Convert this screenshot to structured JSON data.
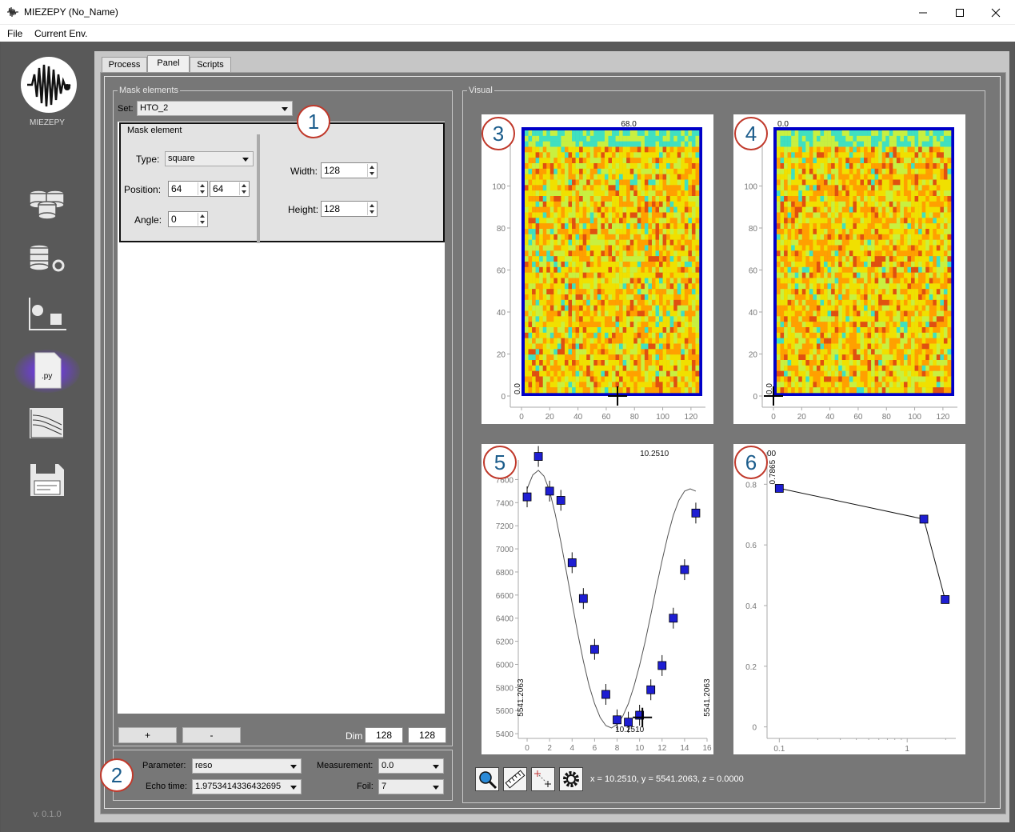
{
  "window": {
    "title": "MIEZEPY (No_Name)"
  },
  "menu": [
    "File",
    "Current Env."
  ],
  "sidebar": {
    "logo_label": "MIEZEPY",
    "version": "v. 0.1.0"
  },
  "tabs": [
    "Process",
    "Panel",
    "Scripts"
  ],
  "mask": {
    "group_title": "Mask elements",
    "set_label": "Set:",
    "set_value": "HTO_2",
    "element_title": "Mask element",
    "type_label": "Type:",
    "type_value": "square",
    "position_label": "Position:",
    "pos_x": "64",
    "pos_y": "64",
    "angle_label": "Angle:",
    "angle_value": "0",
    "width_label": "Width:",
    "width_value": "128",
    "height_label": "Height:",
    "height_value": "128",
    "add_label": "+",
    "remove_label": "-",
    "dim_label": "Dim",
    "dim_x": "128",
    "dim_y": "128"
  },
  "params": {
    "parameter_label": "Parameter:",
    "parameter_value": "reso",
    "echo_label": "Echo time:",
    "echo_value": "1.9753414336432695",
    "measurement_label": "Measurement:",
    "measurement_value": "0.0",
    "foil_label": "Foil:",
    "foil_value": "7"
  },
  "visual": {
    "group_title": "Visual"
  },
  "badges": [
    "1",
    "2",
    "3",
    "4",
    "5",
    "6"
  ],
  "status": {
    "coords": "x = 10.2510, y = 5541.2063, z = 0.0000"
  },
  "tools": [
    "zoom-icon",
    "ruler-icon",
    "crosshair-icon",
    "settings-icon"
  ],
  "chart_data": [
    {
      "type": "heatmap",
      "title": "68.0",
      "cursor_label": "0.0",
      "x_ticks": [
        "0",
        "20",
        "40",
        "60",
        "80",
        "100",
        "120"
      ],
      "y_ticks": [
        "0",
        "20",
        "40",
        "60",
        "80",
        "100"
      ],
      "xlim": [
        0,
        128
      ],
      "ylim": [
        0,
        128
      ],
      "cursor": [
        68,
        0
      ],
      "colormap": [
        "#0000c8",
        "#00a0ff",
        "#40e0c0",
        "#c8f040",
        "#f0e000",
        "#ffa000",
        "#e05010"
      ]
    },
    {
      "type": "heatmap",
      "title": "0.0",
      "cursor_label": "0.0",
      "x_ticks": [
        "0",
        "20",
        "40",
        "60",
        "80",
        "100",
        "120"
      ],
      "y_ticks": [
        "0",
        "20",
        "40",
        "60",
        "80",
        "100"
      ],
      "xlim": [
        0,
        128
      ],
      "ylim": [
        0,
        128
      ],
      "cursor": [
        0,
        0
      ],
      "colormap": [
        "#0000c8",
        "#00a0ff",
        "#40e0c0",
        "#c8f040",
        "#f0e000",
        "#ffa000",
        "#e05010"
      ]
    },
    {
      "type": "scatter",
      "title": "10.2510",
      "bottom_label": "10.2510",
      "left_label": "5541.2063",
      "right_label": "5541.2063",
      "x_ticks": [
        "0",
        "2",
        "4",
        "6",
        "8",
        "10",
        "12",
        "14",
        "16"
      ],
      "y_ticks": [
        "5400",
        "5600",
        "5800",
        "6000",
        "6200",
        "6400",
        "6600",
        "6800",
        "7000",
        "7200",
        "7400",
        "7600"
      ],
      "xlim": [
        -0.5,
        16
      ],
      "ylim": [
        5380,
        7700
      ],
      "x": [
        0,
        1,
        2,
        3,
        4,
        5,
        6,
        7,
        8,
        9,
        10,
        11,
        12,
        13,
        14,
        15
      ],
      "y": [
        7450,
        7800,
        7500,
        7420,
        6880,
        6570,
        6130,
        5740,
        5520,
        5500,
        5560,
        5780,
        5990,
        6400,
        6820,
        7310
      ],
      "fit_x": [
        0,
        0.5,
        1,
        1.5,
        2,
        2.5,
        3,
        3.5,
        4,
        4.5,
        5,
        5.5,
        6,
        6.5,
        7,
        7.5,
        8,
        8.5,
        9,
        9.5,
        10,
        10.5,
        11,
        11.5,
        12,
        12.5,
        13,
        13.5,
        14,
        14.5,
        15
      ],
      "fit_y": [
        7520,
        7640,
        7680,
        7630,
        7500,
        7300,
        7060,
        6800,
        6530,
        6270,
        6030,
        5820,
        5660,
        5540,
        5470,
        5450,
        5480,
        5550,
        5660,
        5810,
        5990,
        6200,
        6430,
        6670,
        6900,
        7110,
        7290,
        7420,
        7500,
        7520,
        7500
      ],
      "cursor": [
        10.251,
        5541.2063
      ]
    },
    {
      "type": "line",
      "title": "00",
      "left_label": "0.7865",
      "x_ticks": [
        "0.1",
        "1"
      ],
      "y_ticks": [
        "0",
        "0.2",
        "0.4",
        "0.6",
        "0.8"
      ],
      "x_scale": "log",
      "xlim": [
        0.09,
        2.4
      ],
      "ylim": [
        -0.03,
        0.88
      ],
      "x": [
        0.1,
        1.35,
        1.98
      ],
      "y": [
        0.7865,
        0.685,
        0.42
      ]
    }
  ]
}
